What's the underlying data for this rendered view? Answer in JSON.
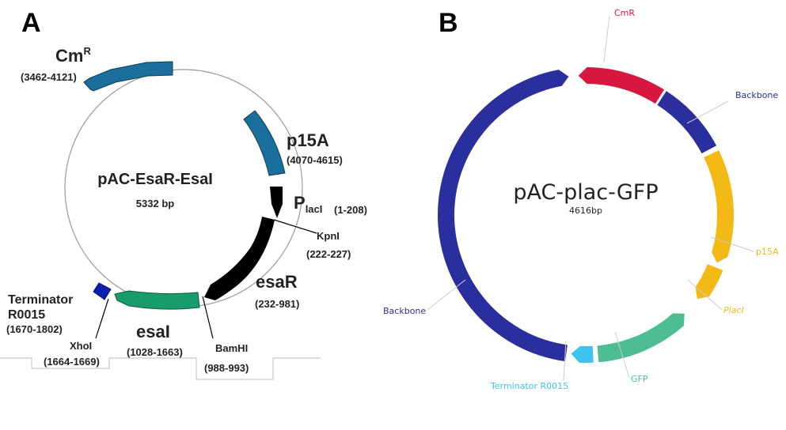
{
  "panel_a": {
    "panel_label": "A",
    "plasmid_name": "pAC-EsaR-EsaI",
    "size": "5332 bp",
    "features": {
      "cmr": {
        "name": "Cm",
        "sup": "R",
        "range": "(3462-4121)",
        "color": "#1b6f9c"
      },
      "p15a": {
        "name": "p15A",
        "range": "(4070-4615)",
        "color": "#1b6f9c"
      },
      "placi": {
        "name": "P",
        "sub": "lacI",
        "range": "(1-208)",
        "color": "#000000"
      },
      "kpni": {
        "name": "KpnI",
        "range": "(222-227)"
      },
      "esar": {
        "name": "esaR",
        "range": "(232-981)",
        "color": "#000000"
      },
      "bamhi": {
        "name": "BamHI",
        "range": "(988-993)"
      },
      "esai": {
        "name": "esaI",
        "range": "(1028-1663)",
        "color": "#1a9b6c"
      },
      "xhoi": {
        "name": "XhoI",
        "range": "(1664-1669)"
      },
      "terminator": {
        "name_line1": "Terminator",
        "name_line2": "R0015",
        "range": "(1670-1802)",
        "color": "#0d1fae"
      }
    }
  },
  "panel_b": {
    "panel_label": "B",
    "plasmid_name": "pAC-plac-GFP",
    "size": "4616bp",
    "labels": {
      "cmr": {
        "text": "CmR",
        "color": "#d7173f"
      },
      "backbone_right": {
        "text": "Backbone",
        "color": "#2b2f9e"
      },
      "p15a": {
        "text": "p15A",
        "color": "#f3b914"
      },
      "placi": {
        "text": "PlacI",
        "color": "#f3b914"
      },
      "gfp": {
        "text": "GFP",
        "color": "#4cbe92"
      },
      "terminator": {
        "text": "Terminator R0015",
        "color": "#3ec3ee"
      },
      "backbone_left": {
        "text": "Backbone",
        "color": "#2b2f9e"
      }
    }
  }
}
